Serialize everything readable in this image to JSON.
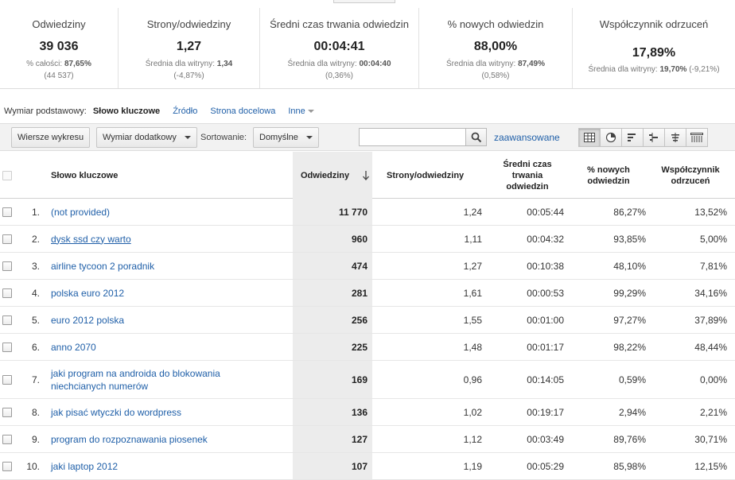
{
  "summary": [
    {
      "label": "Odwiedziny",
      "value": "39 036",
      "sub1_label": "% całości:",
      "sub1_value": "87,65%",
      "sub2": "(44 537)"
    },
    {
      "label": "Strony/odwiedziny",
      "value": "1,27",
      "sub1_label": "Średnia dla witryny:",
      "sub1_value": "1,34",
      "sub2": "(-4,87%)"
    },
    {
      "label": "Średni czas trwania odwiedzin",
      "value": "00:04:41",
      "sub1_label": "Średnia dla witryny:",
      "sub1_value": "00:04:40",
      "sub2": "(0,36%)"
    },
    {
      "label": "% nowych odwiedzin",
      "value": "88,00%",
      "sub1_label": "Średnia dla witryny:",
      "sub1_value": "87,49%",
      "sub2": "(0,58%)"
    },
    {
      "label": "Współczynnik odrzuceń",
      "value": "17,89%",
      "sub1_label": "Średnia dla witryny:",
      "sub1_value": "19,70%",
      "sub2": "(-9,21%)"
    }
  ],
  "dimension": {
    "label": "Wymiar podstawowy:",
    "active": "Słowo kluczowe",
    "links": [
      "Źródło",
      "Strona docelowa",
      "Inne"
    ]
  },
  "toolbar": {
    "plot_rows": "Wiersze wykresu",
    "secondary_dim": "Wymiar dodatkowy",
    "sort_label": "Sortowanie:",
    "sort_value": "Domyślne",
    "search_value": "",
    "advanced": "zaawansowane"
  },
  "icons": {
    "search": "search-icon",
    "views": [
      "table-view-icon",
      "pie-view-icon",
      "performance-view-icon",
      "comparison-view-icon",
      "term-cloud-view-icon",
      "pivot-view-icon"
    ]
  },
  "table": {
    "headers": {
      "keyword": "Słowo kluczowe",
      "visits": "Odwiedziny",
      "pages": "Strony/odwiedziny",
      "duration_l1": "Średni czas",
      "duration_l2": "trwania",
      "duration_l3": "odwiedzin",
      "new_l1": "% nowych",
      "new_l2": "odwiedzin",
      "bounce_l1": "Współczynnik",
      "bounce_l2": "odrzuceń"
    },
    "rows": [
      {
        "idx": "1.",
        "line1": "(not provided)",
        "line2": "",
        "visits": "11 770",
        "pages": "1,24",
        "duration": "00:05:44",
        "new": "86,27%",
        "bounce": "13,52%"
      },
      {
        "idx": "2.",
        "line1": "dysk ssd czy warto",
        "line2": "",
        "visits": "960",
        "pages": "1,11",
        "duration": "00:04:32",
        "new": "93,85%",
        "bounce": "5,00%"
      },
      {
        "idx": "3.",
        "line1": "airline tycoon 2 poradnik",
        "line2": "",
        "visits": "474",
        "pages": "1,27",
        "duration": "00:10:38",
        "new": "48,10%",
        "bounce": "7,81%"
      },
      {
        "idx": "4.",
        "line1": "polska euro 2012",
        "line2": "",
        "visits": "281",
        "pages": "1,61",
        "duration": "00:00:53",
        "new": "99,29%",
        "bounce": "34,16%"
      },
      {
        "idx": "5.",
        "line1": "euro 2012 polska",
        "line2": "",
        "visits": "256",
        "pages": "1,55",
        "duration": "00:01:00",
        "new": "97,27%",
        "bounce": "37,89%"
      },
      {
        "idx": "6.",
        "line1": "anno 2070",
        "line2": "",
        "visits": "225",
        "pages": "1,48",
        "duration": "00:01:17",
        "new": "98,22%",
        "bounce": "48,44%"
      },
      {
        "idx": "7.",
        "line1": "jaki program na androida do blokowania",
        "line2": "niechcianych numerów",
        "visits": "169",
        "pages": "0,96",
        "duration": "00:14:05",
        "new": "0,59%",
        "bounce": "0,00%"
      },
      {
        "idx": "8.",
        "line1": "jak pisać wtyczki do wordpress",
        "line2": "",
        "visits": "136",
        "pages": "1,02",
        "duration": "00:19:17",
        "new": "2,94%",
        "bounce": "2,21%"
      },
      {
        "idx": "9.",
        "line1": "program do rozpoznawania piosenek",
        "line2": "",
        "visits": "127",
        "pages": "1,12",
        "duration": "00:03:49",
        "new": "89,76%",
        "bounce": "30,71%"
      },
      {
        "idx": "10.",
        "line1": "jaki laptop 2012",
        "line2": "",
        "visits": "107",
        "pages": "1,19",
        "duration": "00:05:29",
        "new": "85,98%",
        "bounce": "12,15%"
      }
    ]
  },
  "colors": {
    "link": "#1f5fa8",
    "sorted_column_bg": "#ececec",
    "toolbar_bg": "#f2f2f2"
  }
}
